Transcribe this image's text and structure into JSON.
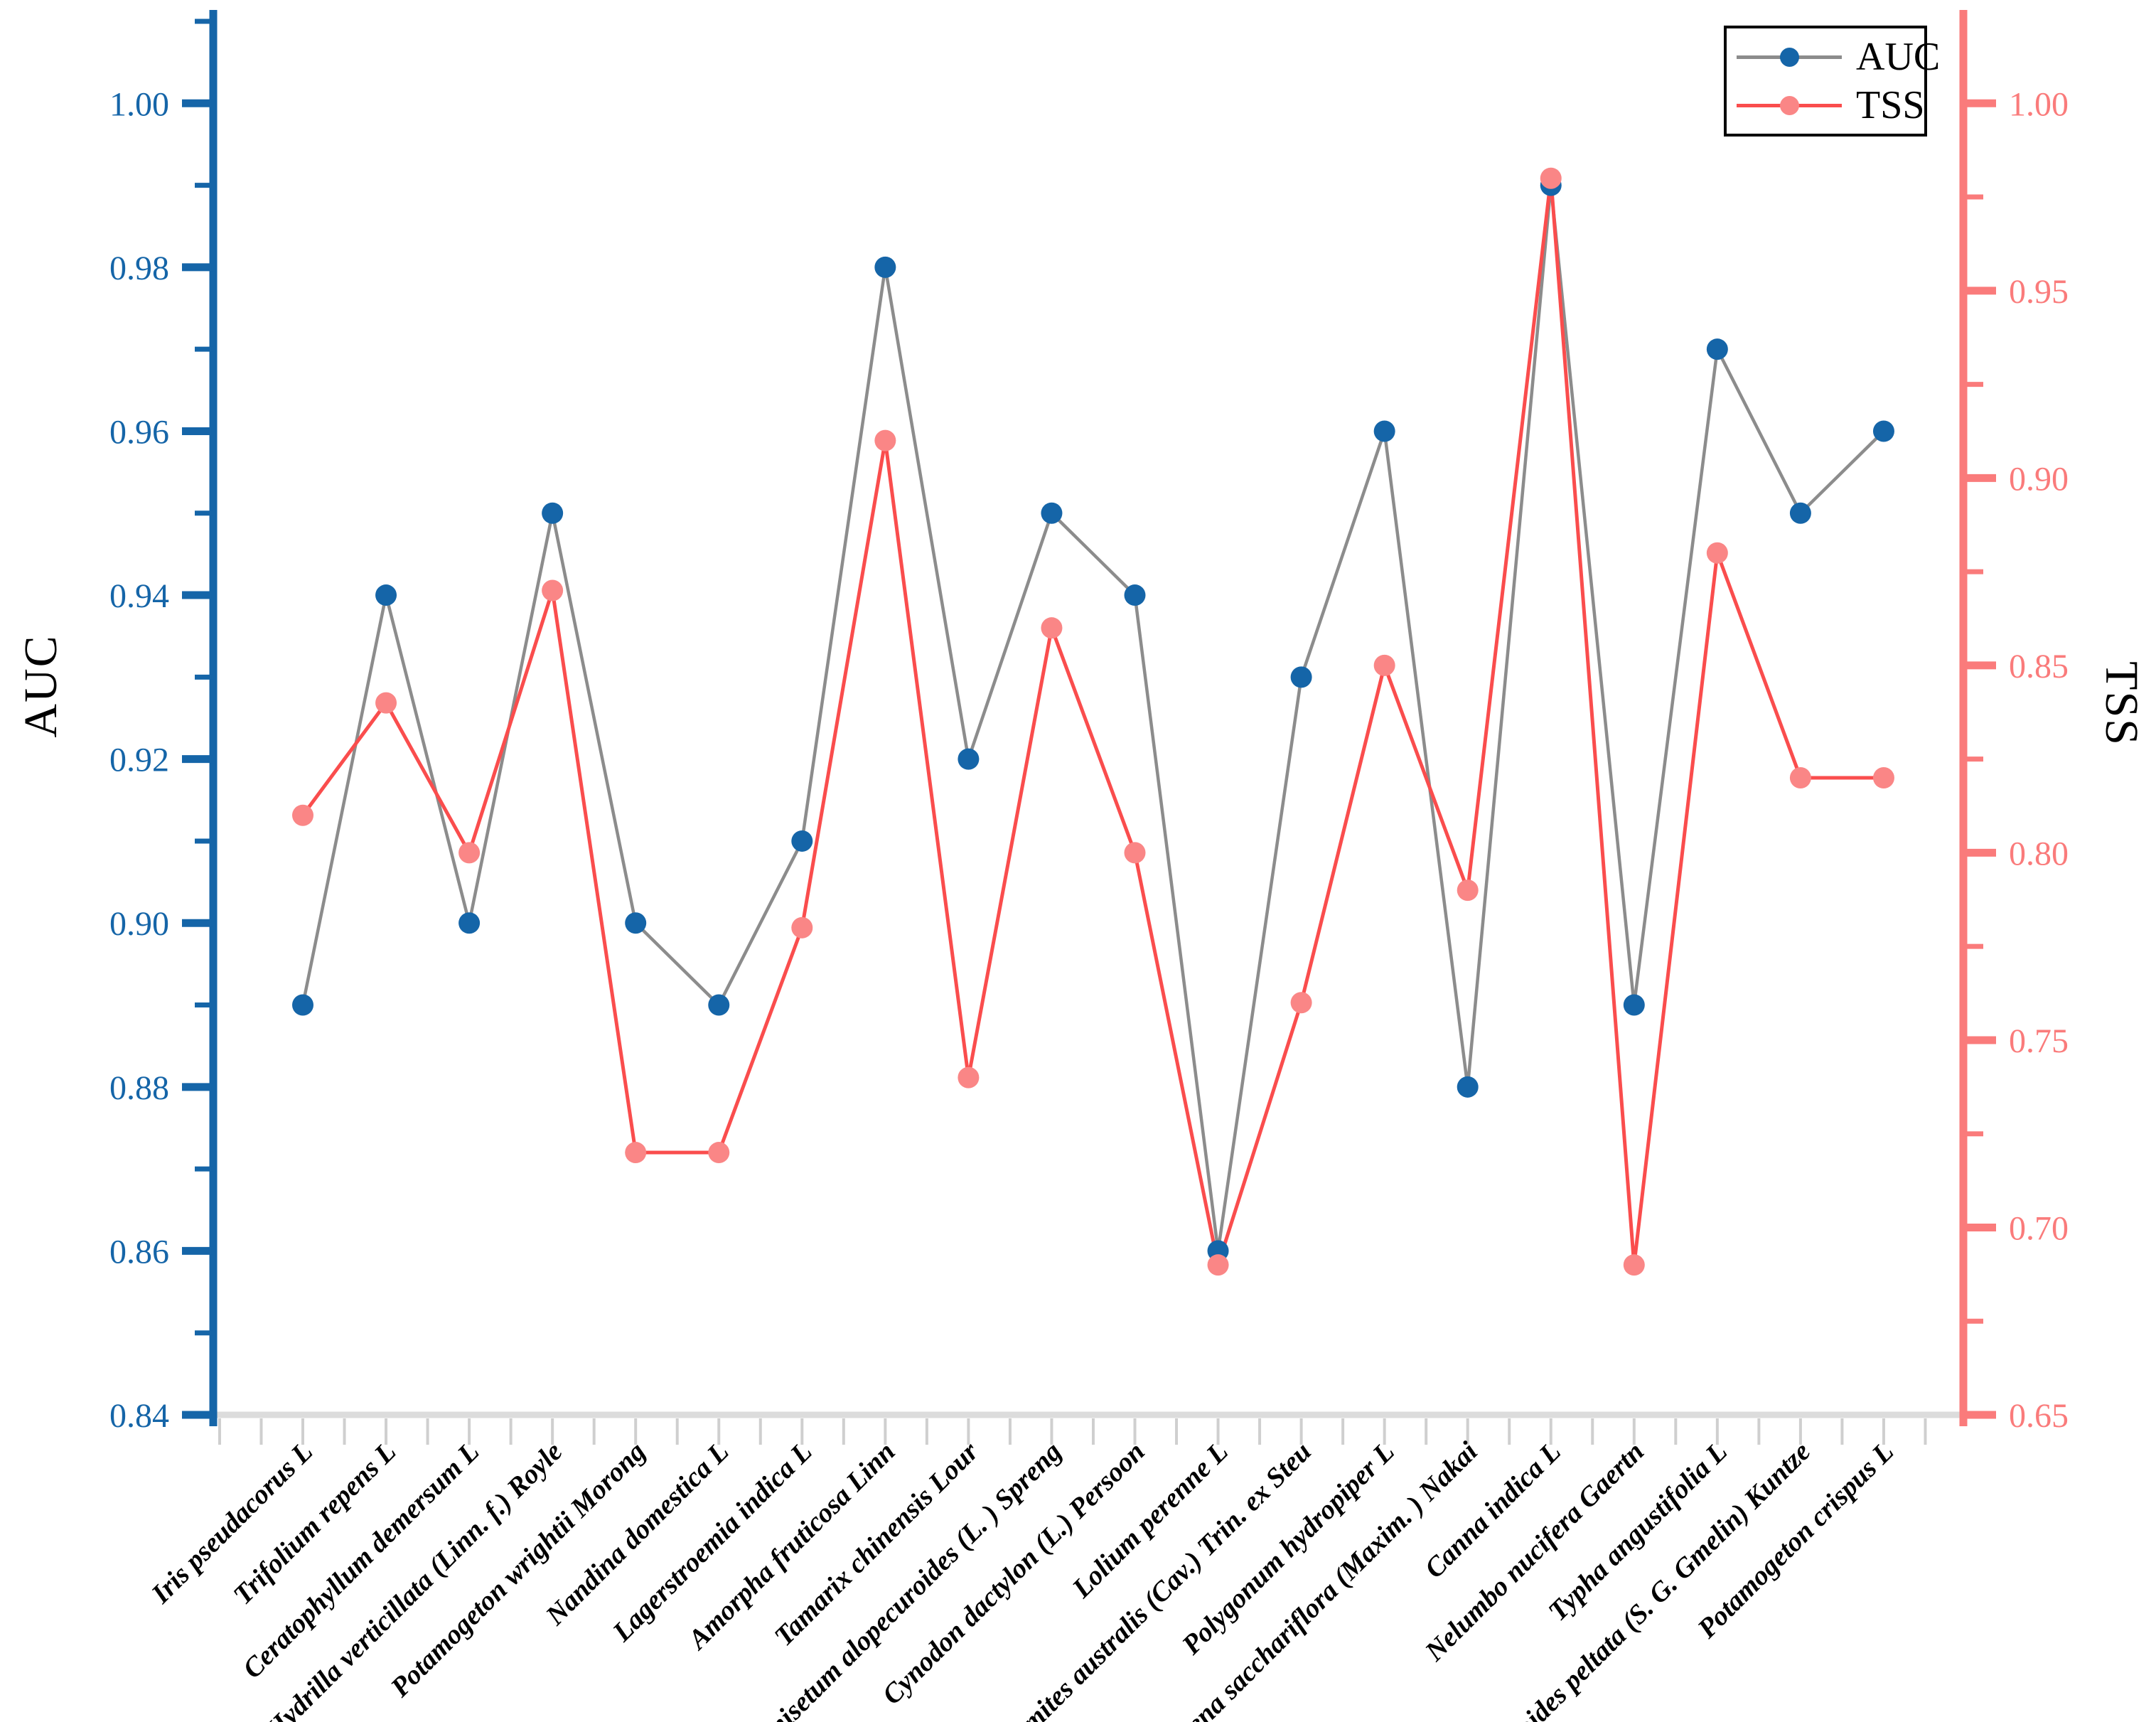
{
  "chart_data": {
    "type": "line",
    "title": "",
    "xlabel": "",
    "grid": false,
    "categories": [
      "Iris pseudacorus L",
      "Trifolium repens L",
      "Ceratophyllum demersum L",
      "Hydrilla verticillata (Linn. f.) Royle",
      "Potamogeton wrightii Morong",
      "Nandina domestica L",
      "Lagerstroemia indica L",
      "Amorpha fruticosa Linn",
      "Tamarix chinensis Lour",
      "Pennisetum alopecuroides (L. ) Spreng",
      "Cynodon dactylon (L.) Persoon",
      "Lolium perenne L",
      "Phragmites australis (Cav.) Trin. ex Steu",
      "Polygonum hydropiper L",
      "Triarrhena sacchariflora (Maxim. ) Nakai",
      "Canna indica L",
      "Nelumbo nucifera Gaertn",
      "Typha angustifolia L",
      "Nymphoides peltata (S. G. Gmelin) Kuntze",
      "Potamogeton crispus L"
    ],
    "series": [
      {
        "name": "AUC",
        "axis": "left",
        "values": [
          0.89,
          0.94,
          0.9,
          0.95,
          0.9,
          0.89,
          0.91,
          0.98,
          0.92,
          0.95,
          0.94,
          0.86,
          0.93,
          0.96,
          0.88,
          0.99,
          0.89,
          0.97,
          0.95,
          0.96
        ]
      },
      {
        "name": "TSS",
        "axis": "right",
        "values": [
          0.81,
          0.84,
          0.8,
          0.87,
          0.72,
          0.72,
          0.78,
          0.91,
          0.74,
          0.86,
          0.8,
          0.69,
          0.76,
          0.85,
          0.79,
          0.98,
          0.69,
          0.88,
          0.82,
          0.82
        ]
      }
    ],
    "left_axis": {
      "label": "AUC",
      "range": [
        0.84,
        1.01
      ],
      "major_step": 0.02,
      "minor_step": 0.01,
      "tick_labels": [
        "0.84",
        "0.86",
        "0.88",
        "0.90",
        "0.92",
        "0.94",
        "0.96",
        "0.98",
        "1.00"
      ]
    },
    "right_axis": {
      "label": "TSS",
      "range": [
        0.65,
        1.022
      ],
      "major_step": 0.05,
      "minor_step": 0.025,
      "tick_labels": [
        "0.65",
        "0.70",
        "0.75",
        "0.80",
        "0.85",
        "0.90",
        "0.95",
        "1.00"
      ]
    },
    "legend": {
      "position": "top-right",
      "items": [
        "AUC",
        "TSS"
      ]
    }
  },
  "colors": {
    "auc_line": "#8c8c8c",
    "auc_marker": "#1565a8",
    "tss_line": "#fa4d4d",
    "tss_marker": "#fa8686",
    "left_axis": "#1565a8",
    "right_axis": "#fa7b7b",
    "bottom_axis": "#dcdcdc",
    "bottom_tick": "#cfcfcf",
    "x_label": "#000000",
    "background": "#ffffff"
  }
}
